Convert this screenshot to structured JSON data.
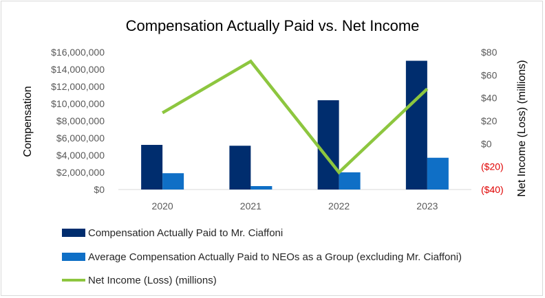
{
  "chart_data": {
    "type": "bar",
    "title": "Compensation Actually Paid vs. Net Income",
    "categories": [
      "2020",
      "2021",
      "2022",
      "2023"
    ],
    "series": [
      {
        "name": "Compensation Actually Paid to Mr. Ciaffoni",
        "type": "bar",
        "axis": "left",
        "values": [
          5200000,
          5100000,
          10400000,
          15000000
        ]
      },
      {
        "name": "Average Compensation Actually Paid to NEOs as a Group (excluding Mr. Ciaffoni)",
        "type": "bar",
        "axis": "left",
        "values": [
          1900000,
          400000,
          2000000,
          3700000
        ]
      },
      {
        "name": "Net Income (Loss) (millions)",
        "type": "line",
        "axis": "right",
        "values": [
          27,
          72,
          -25,
          48
        ]
      }
    ],
    "ylabel": "Compensation",
    "y2label": "Net Income (Loss) (millions)",
    "ylim": [
      0,
      16000000
    ],
    "y2lim": [
      -40,
      80
    ],
    "yticks": [
      "$0",
      "$2,000,000",
      "$4,000,000",
      "$6,000,000",
      "$8,000,000",
      "$10,000,000",
      "$12,000,000",
      "$14,000,000",
      "$16,000,000"
    ],
    "y2ticks": [
      "($40)",
      "($20)",
      "$0",
      "$20",
      "$40",
      "$60",
      "$80"
    ],
    "legend_position": "bottom",
    "grid": false,
    "colors": {
      "series1": "#002d6e",
      "series2": "#0f6fc6",
      "line": "#8dc63f",
      "negative_tick": "#e00000",
      "text": "#595959",
      "axis": "#d9d9d9"
    }
  }
}
